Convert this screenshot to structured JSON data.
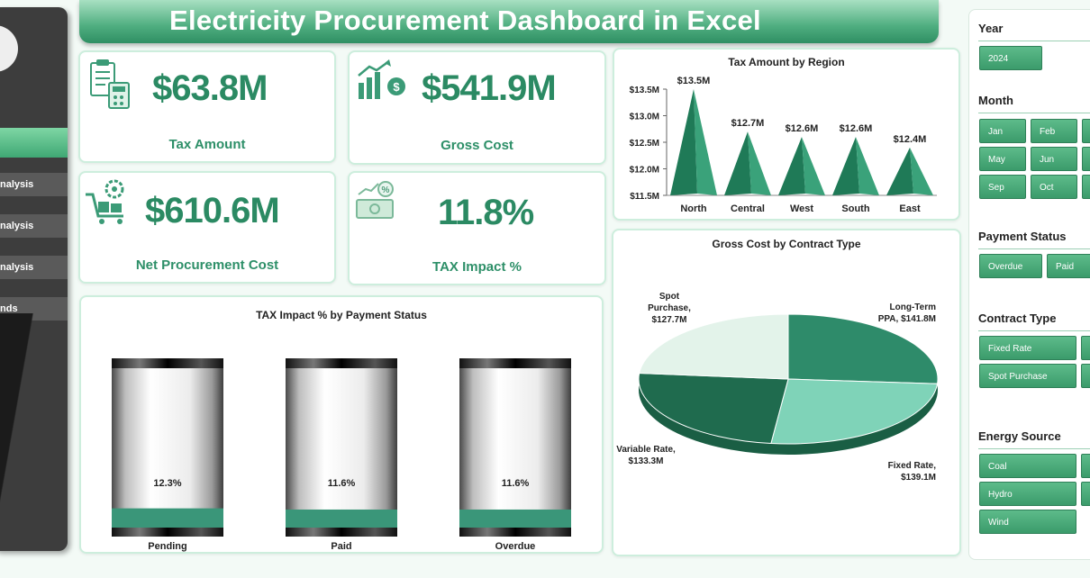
{
  "header": {
    "title": "Electricity Procurement Dashboard in Excel"
  },
  "sidebar": {
    "items": [
      {
        "label": "nalysis"
      },
      {
        "label": "nalysis"
      },
      {
        "label": "nalysis"
      },
      {
        "label": "nds"
      }
    ]
  },
  "kpis": [
    {
      "value": "$63.8M",
      "label": "Tax Amount",
      "icon": "calculator-icon"
    },
    {
      "value": "$541.9M",
      "label": "Gross Cost",
      "icon": "growth-chart-icon"
    },
    {
      "value": "$610.6M",
      "label": "Net Procurement Cost",
      "icon": "cart-gear-icon"
    },
    {
      "value": "11.8%",
      "label": "TAX Impact %",
      "icon": "money-percent-icon"
    }
  ],
  "chart_data": [
    {
      "type": "bar",
      "title": "Tax Amount by Region",
      "categories": [
        "North",
        "Central",
        "West",
        "South",
        "East"
      ],
      "values": [
        13.5,
        12.7,
        12.6,
        12.6,
        12.4
      ],
      "data_labels": [
        "$13.5M",
        "$12.7M",
        "$12.6M",
        "$12.6M",
        "$12.4M"
      ],
      "ylim": [
        11.5,
        13.5
      ],
      "yticks": [
        "$11.5M",
        "$12.0M",
        "$12.5M",
        "$13.0M",
        "$13.5M"
      ],
      "color": "#2f8f6a"
    },
    {
      "type": "pie",
      "title": "Gross Cost by Contract Type",
      "slices": [
        {
          "label": "Long-Term PPA, $141.8M",
          "value": 141.8,
          "color": "#2e8b6a"
        },
        {
          "label": "Fixed Rate, $139.1M",
          "value": 139.1,
          "color": "#7fd3b8"
        },
        {
          "label": "Variable Rate, $133.3M",
          "value": 133.3,
          "color": "#1f6b4e"
        },
        {
          "label": "Spot Purchase, $127.7M",
          "value": 127.7,
          "color": "#e3f3ea"
        }
      ]
    },
    {
      "type": "bar",
      "title": "TAX Impact % by Payment Status",
      "categories": [
        "Pending",
        "Paid",
        "Overdue"
      ],
      "values": [
        12.3,
        11.6,
        11.6
      ],
      "data_labels": [
        "12.3%",
        "11.6%",
        "11.6%"
      ],
      "color": "#3a9679"
    }
  ],
  "slicers": {
    "year": {
      "title": "Year",
      "options": [
        "2024"
      ]
    },
    "month": {
      "title": "Month",
      "options": [
        "Jan",
        "Feb",
        "May",
        "Jun",
        "Sep",
        "Oct"
      ]
    },
    "payment_status": {
      "title": "Payment Status",
      "options": [
        "Overdue",
        "Paid"
      ]
    },
    "contract_type": {
      "title": "Contract Type",
      "options": [
        "Fixed Rate",
        "Spot Purchase"
      ]
    },
    "energy_source": {
      "title": "Energy Source",
      "options": [
        "Coal",
        "Hydro",
        "Wind"
      ]
    }
  }
}
